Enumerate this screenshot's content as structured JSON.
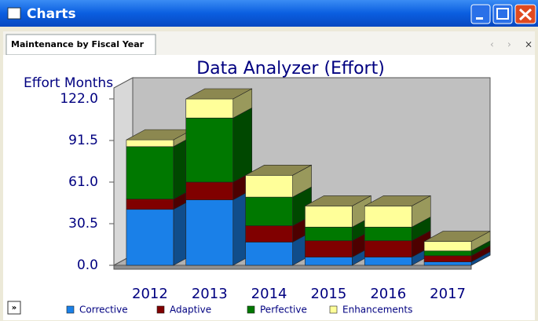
{
  "window": {
    "title": "Charts",
    "tab": "Maintenance by Fiscal Year",
    "expand_button": "»"
  },
  "chart_data": {
    "type": "bar3d_stacked",
    "title": "Data Analyzer (Effort)",
    "y_label": "Effort Months",
    "categories": [
      "2012",
      "2013",
      "2014",
      "2015",
      "2016",
      "2017"
    ],
    "series": [
      {
        "name": "Corrective",
        "color": "#1a80e8",
        "values": [
          41,
          48,
          17,
          6,
          6,
          2.5
        ]
      },
      {
        "name": "Adaptive",
        "color": "#800000",
        "values": [
          7.5,
          13,
          12,
          12,
          12,
          4.5
        ]
      },
      {
        "name": "Perfective",
        "color": "#007800",
        "values": [
          38.5,
          47,
          21,
          10,
          10,
          3.5
        ]
      },
      {
        "name": "Enhancements",
        "color": "#ffff99",
        "values": [
          5,
          14,
          16,
          15.5,
          15.5,
          7
        ]
      }
    ],
    "ylim": [
      0,
      122
    ],
    "yticks": [
      {
        "value": 0,
        "label": "0.0"
      },
      {
        "value": 30.5,
        "label": "30.5"
      },
      {
        "value": 61,
        "label": "61.0"
      },
      {
        "value": 91.5,
        "label": "91.5"
      },
      {
        "value": 122,
        "label": "122.0"
      }
    ],
    "top_color": "#8c8850",
    "wall_color": "#c0c0c0"
  }
}
